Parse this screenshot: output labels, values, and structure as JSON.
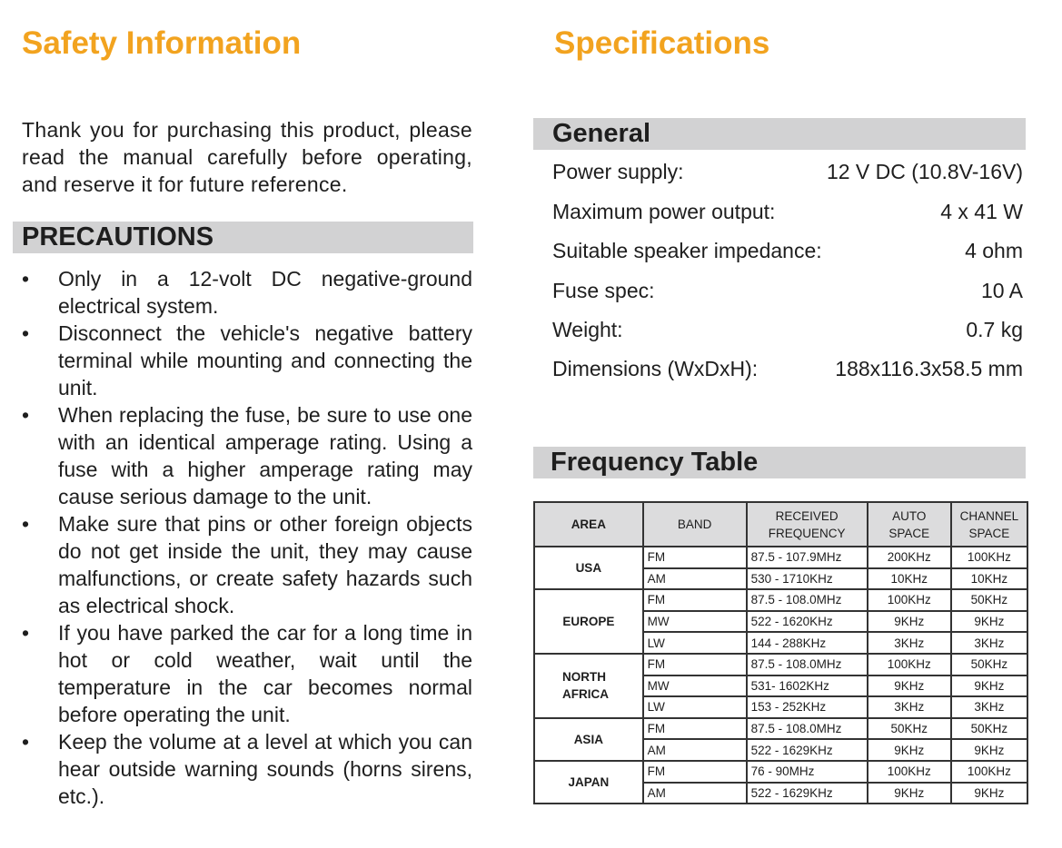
{
  "safety": {
    "title": "Safety Information",
    "intro": "Thank you for purchasing this product, please read the manual carefully before operating, and reserve it for future reference.",
    "precautions_heading": "PRECAUTIONS",
    "precautions": [
      "Only in a 12-volt DC negative-ground electrical system.",
      "Disconnect the vehicle's negative battery terminal while mounting and connecting the unit.",
      "When replacing the fuse, be sure to use one with an identical amperage rating. Using a fuse with a higher amperage rating may cause serious damage to the unit.",
      "Make sure that pins or other foreign objects do not get inside the unit, they may cause malfunctions, or create safety hazards such as electrical shock.",
      "If you have parked the car for a long time in hot or cold weather, wait until the temperature in the car becomes normal before operating the unit.",
      "Keep the volume at a level at which you can hear outside warning sounds  (horns sirens, etc.)."
    ]
  },
  "specs": {
    "title": "Specifications",
    "general_heading": "General",
    "general": [
      {
        "label": "Power supply:",
        "value": "12 V DC (10.8V-16V)"
      },
      {
        "label": "Maximum power output:",
        "value": "4 x 41 W"
      },
      {
        "label": "Suitable speaker impedance:",
        "value": "4 ohm"
      },
      {
        "label": "Fuse spec:",
        "value": "10 A"
      },
      {
        "label": "Weight:",
        "value": "0.7 kg"
      },
      {
        "label": "Dimensions (WxDxH):",
        "value": "188x116.3x58.5 mm"
      }
    ],
    "frequency_heading": "Frequency Table",
    "headers": [
      "AREA",
      "BAND",
      "RECEIVED FREQUENCY",
      "AUTO SPACE",
      "CHANNEL SPACE"
    ],
    "areas": [
      {
        "area": "USA",
        "rows": [
          [
            "FM",
            "87.5 - 107.9MHz",
            "200KHz",
            "100KHz"
          ],
          [
            "AM",
            "530 - 1710KHz",
            "10KHz",
            "10KHz"
          ]
        ]
      },
      {
        "area": "EUROPE",
        "rows": [
          [
            "FM",
            "87.5 - 108.0MHz",
            "100KHz",
            "50KHz"
          ],
          [
            "MW",
            "522 - 1620KHz",
            "9KHz",
            "9KHz"
          ],
          [
            "LW",
            "144 - 288KHz",
            "3KHz",
            "3KHz"
          ]
        ]
      },
      {
        "area": "NORTH AFRICA",
        "rows": [
          [
            "FM",
            "87.5 - 108.0MHz",
            "100KHz",
            "50KHz"
          ],
          [
            "MW",
            "531- 1602KHz",
            "9KHz",
            "9KHz"
          ],
          [
            "LW",
            "153 - 252KHz",
            "3KHz",
            "3KHz"
          ]
        ]
      },
      {
        "area": "ASIA",
        "rows": [
          [
            "FM",
            "87.5 - 108.0MHz",
            "50KHz",
            "50KHz"
          ],
          [
            "AM",
            "522 - 1629KHz",
            "9KHz",
            "9KHz"
          ]
        ]
      },
      {
        "area": "JAPAN",
        "rows": [
          [
            "FM",
            "76 - 90MHz",
            "100KHz",
            "100KHz"
          ],
          [
            "AM",
            "522 - 1629KHz",
            "9KHz",
            "9KHz"
          ]
        ]
      }
    ]
  },
  "colors": {
    "heading_orange": "#f2a31f",
    "bar_gray": "#d2d2d3"
  }
}
